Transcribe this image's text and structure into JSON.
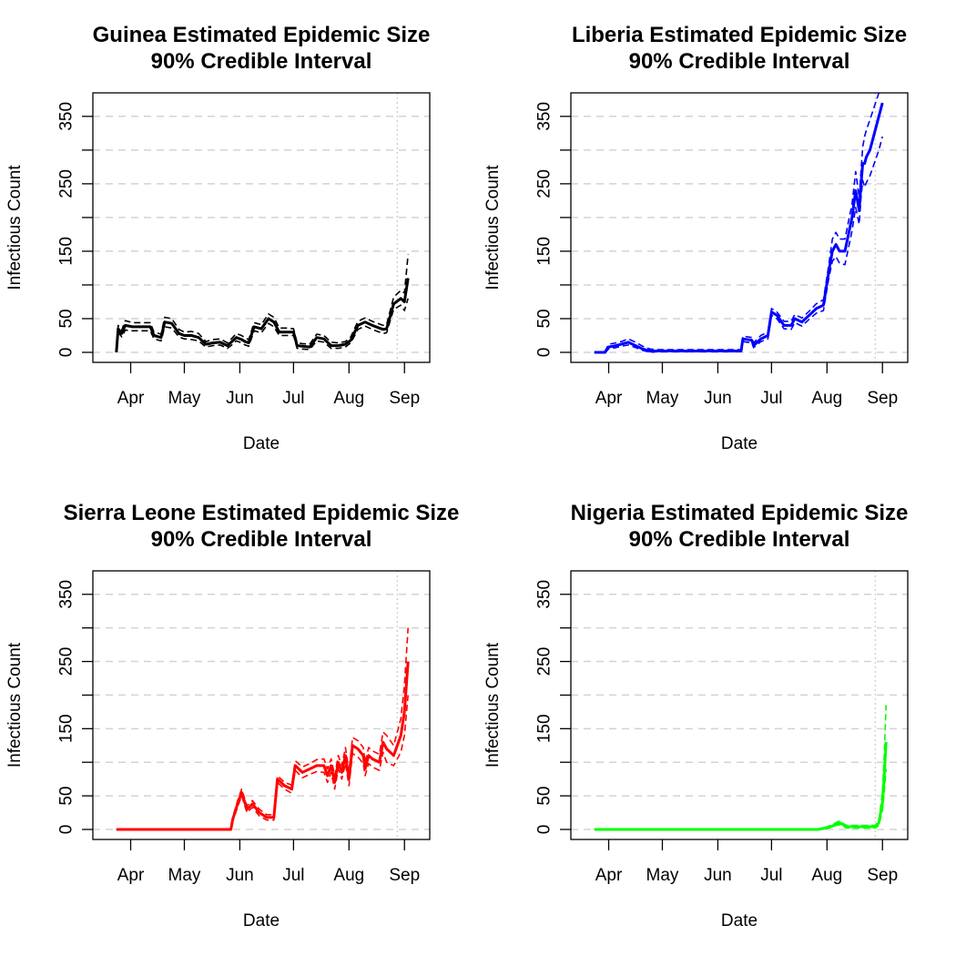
{
  "chart_data": [
    {
      "type": "line",
      "title": "Guinea Estimated Epidemic Size",
      "subtitle": "90% Credible Interval",
      "xlabel": "Date",
      "ylabel": "Infectious Count",
      "x_tick_labels": [
        "Apr",
        "May",
        "Jun",
        "Jul",
        "Aug",
        "Sep"
      ],
      "y_tick_labels": [
        "0",
        "50",
        "150",
        "250",
        "350"
      ],
      "y_ticks": [
        0,
        50,
        100,
        150,
        200,
        250,
        300,
        350
      ],
      "ylim": [
        0,
        370
      ],
      "grid": true,
      "color": "#000000",
      "x": [
        "Mar 24",
        "Mar 25",
        "Mar 27",
        "Mar 29",
        "Apr 2",
        "Apr 8",
        "Apr 12",
        "Apr 14",
        "Apr 18",
        "Apr 20",
        "Apr 24",
        "Apr 28",
        "May 1",
        "May 5",
        "May 9",
        "May 13",
        "May 17",
        "May 21",
        "May 25",
        "May 28",
        "May 30",
        "Jun 2",
        "Jun 4",
        "Jun 6",
        "Jun 9",
        "Jun 13",
        "Jun 17",
        "Jun 20",
        "Jun 23",
        "Jun 27",
        "Jul 1",
        "Jul 3",
        "Jul 6",
        "Jul 10",
        "Jul 14",
        "Jul 18",
        "Jul 22",
        "Jul 26",
        "Jul 30",
        "Aug 2",
        "Aug 6",
        "Aug 10",
        "Aug 14",
        "Aug 18",
        "Aug 20",
        "Aug 22",
        "Aug 26",
        "Aug 30",
        "Sep 1",
        "Sep 3"
      ],
      "series": [
        {
          "name": "",
          "role": "median",
          "values": [
            0,
            35,
            28,
            40,
            38,
            38,
            38,
            25,
            22,
            45,
            43,
            28,
            25,
            25,
            22,
            12,
            14,
            15,
            10,
            17,
            22,
            19,
            16,
            14,
            38,
            35,
            50,
            45,
            30,
            30,
            30,
            10,
            9,
            8,
            22,
            20,
            10,
            10,
            12,
            18,
            40,
            45,
            40,
            36,
            34,
            35,
            72,
            80,
            75,
            110
          ]
        },
        {
          "name": "",
          "role": "upper",
          "values": [
            3,
            40,
            33,
            47,
            44,
            44,
            44,
            30,
            27,
            52,
            50,
            34,
            30,
            31,
            28,
            16,
            19,
            20,
            14,
            22,
            28,
            25,
            21,
            19,
            44,
            41,
            57,
            52,
            36,
            36,
            35,
            14,
            13,
            12,
            27,
            25,
            15,
            14,
            16,
            23,
            46,
            51,
            46,
            42,
            40,
            41,
            82,
            92,
            88,
            145
          ]
        },
        {
          "name": "",
          "role": "lower",
          "values": [
            0,
            30,
            23,
            33,
            32,
            32,
            32,
            20,
            17,
            38,
            36,
            23,
            20,
            19,
            17,
            8,
            10,
            11,
            6,
            12,
            17,
            14,
            11,
            9,
            32,
            29,
            43,
            38,
            25,
            25,
            25,
            6,
            5,
            4,
            17,
            15,
            6,
            6,
            8,
            14,
            34,
            39,
            34,
            30,
            28,
            29,
            64,
            70,
            62,
            80
          ]
        }
      ]
    },
    {
      "type": "line",
      "title": "Liberia Estimated Epidemic Size",
      "subtitle": "90% Credible Interval",
      "xlabel": "Date",
      "ylabel": "Infectious Count",
      "x_tick_labels": [
        "Apr",
        "May",
        "Jun",
        "Jul",
        "Aug",
        "Sep"
      ],
      "y_tick_labels": [
        "0",
        "50",
        "150",
        "250",
        "350"
      ],
      "y_ticks": [
        0,
        50,
        100,
        150,
        200,
        250,
        300,
        350
      ],
      "ylim": [
        0,
        370
      ],
      "grid": true,
      "color": "#0000ff",
      "x": [
        "Mar 24",
        "Mar 30",
        "Apr 1",
        "Apr 5",
        "Apr 8",
        "Apr 12",
        "Apr 16",
        "Apr 20",
        "Apr 24",
        "Apr 28",
        "Jun 14",
        "Jun 15",
        "Jun 20",
        "Jun 21",
        "Jun 25",
        "Jun 29",
        "Jul 1",
        "Jul 4",
        "Jul 8",
        "Jul 12",
        "Jul 14",
        "Jul 18",
        "Jul 22",
        "Jul 26",
        "Jul 30",
        "Aug 2",
        "Aug 4",
        "Aug 6",
        "Aug 8",
        "Aug 11",
        "Aug 15",
        "Aug 17",
        "Aug 19",
        "Aug 20",
        "Aug 21",
        "Aug 22",
        "Aug 23",
        "Aug 25",
        "Aug 30",
        "Sep 1"
      ],
      "series": [
        {
          "name": "",
          "role": "median",
          "values": [
            0,
            0,
            8,
            10,
            12,
            15,
            10,
            5,
            2,
            2,
            2,
            20,
            18,
            10,
            20,
            25,
            60,
            55,
            40,
            40,
            50,
            45,
            55,
            65,
            70,
            120,
            150,
            160,
            150,
            150,
            200,
            240,
            210,
            250,
            280,
            280,
            290,
            300,
            350,
            370
          ]
        },
        {
          "name": "",
          "role": "upper",
          "values": [
            0,
            2,
            12,
            14,
            16,
            20,
            15,
            9,
            5,
            4,
            4,
            24,
            22,
            14,
            25,
            30,
            65,
            60,
            46,
            46,
            56,
            51,
            61,
            72,
            78,
            130,
            168,
            178,
            168,
            168,
            220,
            268,
            230,
            270,
            305,
            320,
            330,
            345,
            385,
            400
          ]
        },
        {
          "name": "",
          "role": "lower",
          "values": [
            0,
            0,
            5,
            7,
            9,
            11,
            7,
            3,
            0,
            1,
            1,
            16,
            14,
            7,
            16,
            20,
            55,
            50,
            35,
            34,
            44,
            39,
            49,
            58,
            62,
            110,
            135,
            142,
            132,
            130,
            180,
            215,
            190,
            230,
            255,
            245,
            252,
            262,
            300,
            320
          ]
        }
      ]
    },
    {
      "type": "line",
      "title": "Sierra Leone Estimated Epidemic Size",
      "subtitle": "90% Credible Interval",
      "xlabel": "Date",
      "ylabel": "Infectious Count",
      "x_tick_labels": [
        "Apr",
        "May",
        "Jun",
        "Jul",
        "Aug",
        "Sep"
      ],
      "y_tick_labels": [
        "0",
        "50",
        "150",
        "250",
        "350"
      ],
      "y_ticks": [
        0,
        50,
        100,
        150,
        200,
        250,
        300,
        350
      ],
      "ylim": [
        0,
        370
      ],
      "grid": true,
      "color": "#ff0000",
      "x": [
        "Mar 24",
        "May 27",
        "May 28",
        "May 31",
        "Jun 2",
        "Jun 5",
        "Jun 8",
        "Jun 12",
        "Jun 16",
        "Jun 20",
        "Jun 22",
        "Jun 26",
        "Jun 30",
        "Jul 2",
        "Jul 6",
        "Jul 10",
        "Jul 14",
        "Jul 18",
        "Jul 20",
        "Jul 22",
        "Jul 24",
        "Jul 26",
        "Jul 28",
        "Jul 30",
        "Aug 1",
        "Aug 3",
        "Aug 6",
        "Aug 9",
        "Aug 10",
        "Aug 12",
        "Aug 14",
        "Aug 18",
        "Aug 20",
        "Aug 22",
        "Aug 26",
        "Aug 30",
        "Sep 1",
        "Sep 3"
      ],
      "series": [
        {
          "name": "",
          "role": "median",
          "values": [
            0,
            0,
            15,
            40,
            55,
            30,
            38,
            25,
            18,
            18,
            75,
            65,
            60,
            95,
            85,
            90,
            95,
            95,
            80,
            95,
            70,
            100,
            85,
            110,
            75,
            125,
            120,
            110,
            90,
            110,
            105,
            100,
            130,
            120,
            110,
            140,
            175,
            250
          ]
        },
        {
          "name": "",
          "role": "upper",
          "values": [
            0,
            0,
            18,
            45,
            60,
            35,
            43,
            30,
            22,
            22,
            80,
            70,
            66,
            102,
            93,
            98,
            104,
            105,
            90,
            105,
            80,
            110,
            95,
            122,
            86,
            137,
            132,
            122,
            100,
            122,
            117,
            112,
            145,
            140,
            125,
            165,
            215,
            300
          ]
        },
        {
          "name": "",
          "role": "lower",
          "values": [
            0,
            0,
            12,
            35,
            50,
            25,
            33,
            20,
            14,
            14,
            70,
            60,
            54,
            88,
            77,
            82,
            86,
            85,
            70,
            85,
            60,
            90,
            75,
            98,
            65,
            113,
            108,
            98,
            80,
            98,
            93,
            88,
            115,
            100,
            95,
            115,
            140,
            200
          ]
        }
      ]
    },
    {
      "type": "line",
      "title": "Nigeria Estimated Epidemic Size",
      "subtitle": "90% Credible Interval",
      "xlabel": "Date",
      "ylabel": "Infectious Count",
      "x_tick_labels": [
        "Apr",
        "May",
        "Jun",
        "Jul",
        "Aug",
        "Sep"
      ],
      "y_tick_labels": [
        "0",
        "50",
        "150",
        "250",
        "350"
      ],
      "y_ticks": [
        0,
        50,
        100,
        150,
        200,
        250,
        300,
        350
      ],
      "ylim": [
        0,
        370
      ],
      "grid": true,
      "color": "#00ff00",
      "x": [
        "Mar 24",
        "Jul 27",
        "Jul 31",
        "Aug 4",
        "Aug 6",
        "Aug 8",
        "Aug 10",
        "Aug 12",
        "Aug 16",
        "Aug 20",
        "Aug 24",
        "Aug 28",
        "Aug 30",
        "Sep 1",
        "Sep 2",
        "Sep 3"
      ],
      "series": [
        {
          "name": "",
          "role": "median",
          "values": [
            0,
            0,
            2,
            5,
            8,
            10,
            7,
            4,
            4,
            4,
            4,
            4,
            10,
            40,
            80,
            130
          ]
        },
        {
          "name": "",
          "role": "upper",
          "values": [
            0,
            0,
            3,
            7,
            10,
            13,
            9,
            6,
            6,
            6,
            6,
            6,
            14,
            55,
            110,
            185
          ]
        },
        {
          "name": "",
          "role": "lower",
          "values": [
            0,
            0,
            1,
            3,
            6,
            7,
            5,
            2,
            2,
            2,
            2,
            2,
            6,
            28,
            55,
            90
          ]
        }
      ]
    }
  ]
}
